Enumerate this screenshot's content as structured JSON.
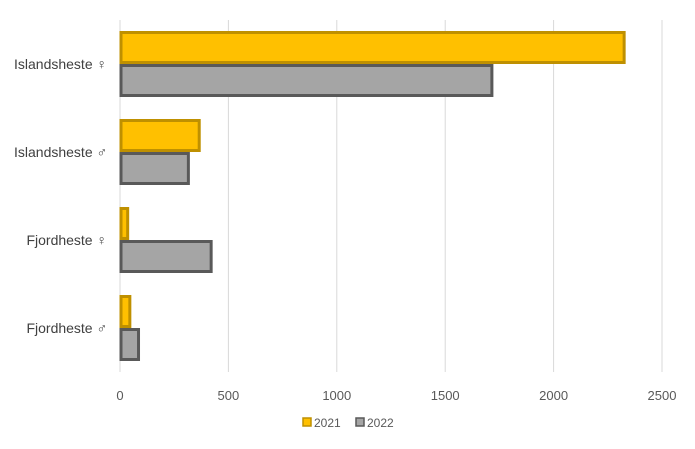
{
  "chart_data": {
    "type": "bar",
    "orientation": "horizontal",
    "categories": [
      "Islandsheste ♀",
      "Islandsheste ♂",
      "Fjordheste ♀",
      "Fjordheste ♂"
    ],
    "series": [
      {
        "name": "2021",
        "values": [
          2330,
          370,
          40,
          50
        ],
        "fill": "#ffc000",
        "stroke": "#bf9000"
      },
      {
        "name": "2022",
        "values": [
          1720,
          320,
          425,
          90
        ],
        "fill": "#a5a5a5",
        "stroke": "#595959"
      }
    ],
    "xlim": [
      0,
      2500
    ],
    "xticks": [
      "0",
      "500",
      "1000",
      "1500",
      "2000",
      "2500"
    ],
    "grid": true,
    "legend_position": "bottom",
    "title": "",
    "xlabel": "",
    "ylabel": ""
  }
}
